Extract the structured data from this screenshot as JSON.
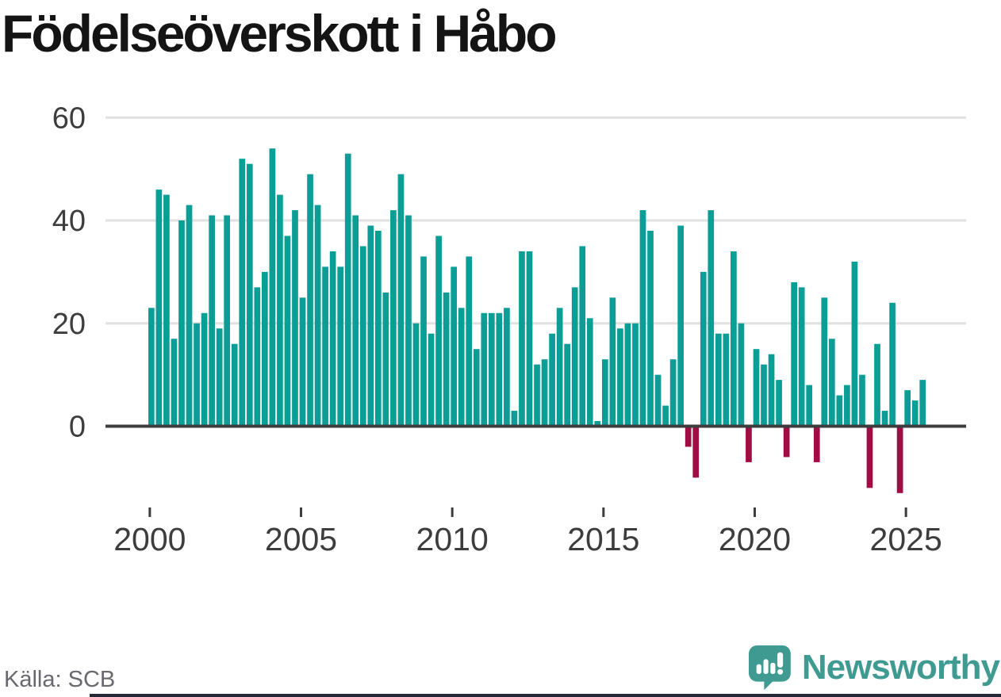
{
  "chart_data": {
    "type": "bar",
    "title": "Födelseöverskott i Håbo",
    "source": "Källa: SCB",
    "frequency": "quarterly",
    "x_start": "2000-Q1",
    "x_end": "2025-Q3",
    "values": [
      23,
      46,
      45,
      17,
      40,
      43,
      20,
      22,
      41,
      19,
      41,
      16,
      52,
      51,
      27,
      30,
      54,
      45,
      37,
      42,
      25,
      49,
      43,
      31,
      34,
      31,
      53,
      41,
      35,
      39,
      38,
      26,
      42,
      49,
      41,
      20,
      33,
      18,
      37,
      26,
      31,
      23,
      33,
      15,
      22,
      22,
      22,
      23,
      3,
      34,
      34,
      12,
      13,
      18,
      23,
      16,
      27,
      35,
      21,
      1,
      13,
      25,
      19,
      20,
      20,
      42,
      38,
      10,
      4,
      13,
      39,
      -4,
      -10,
      30,
      42,
      18,
      18,
      34,
      20,
      -7,
      15,
      12,
      14,
      9,
      -6,
      28,
      27,
      8,
      -7,
      25,
      17,
      6,
      8,
      32,
      10,
      -12,
      16,
      3,
      24,
      -13,
      7,
      5,
      9
    ],
    "x_tick_labels": [
      "2000",
      "2005",
      "2010",
      "2015",
      "2020",
      "2025"
    ],
    "y_tick_labels": [
      "0",
      "20",
      "40",
      "60"
    ],
    "y_ticks": [
      0,
      20,
      40,
      60
    ],
    "ylim": [
      -15,
      60
    ],
    "grid": "horizontal",
    "legend": "none",
    "colors": {
      "positive_bar": "#0a9e96",
      "negative_bar": "#a00d45",
      "axis_line": "#3d3d3d",
      "gridline": "#e1e1e1",
      "tick_label": "#3d3d3d",
      "title": "#141414",
      "source_text": "#69686f"
    }
  },
  "footer": {
    "brand": "Newsworthy",
    "brand_color": "#3f9a91",
    "icon": "newsworthy-speech-bubble-chart-icon"
  }
}
